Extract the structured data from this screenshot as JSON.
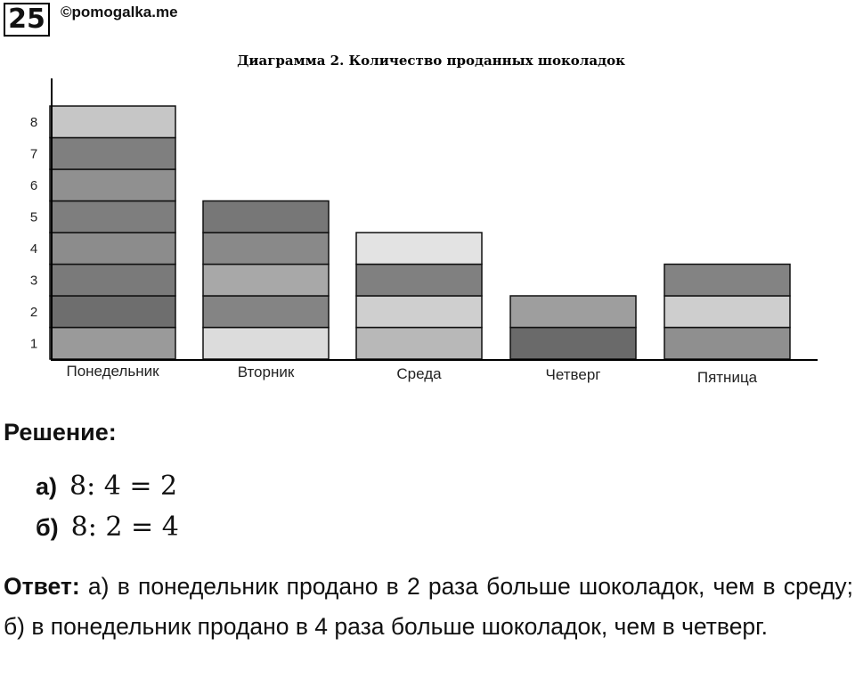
{
  "header": {
    "problem_number": "25",
    "site": "©pomogalka.me"
  },
  "chart_data": {
    "type": "bar",
    "title": "Диаграмма 2. Количество проданных шоколадок",
    "categories": [
      "Понедельник",
      "Вторник",
      "Среда",
      "Четверг",
      "Пятница"
    ],
    "values": [
      8,
      5,
      4,
      2,
      3
    ],
    "yticks": [
      "1",
      "2",
      "3",
      "4",
      "5",
      "6",
      "7",
      "8"
    ],
    "ylim": [
      0,
      8.5
    ],
    "xlabel": "",
    "ylabel": "",
    "grid": false,
    "stacked_units": true,
    "unit_colors": {
      "Понедельник": [
        "#9a9a9a",
        "#6e6e6e",
        "#7a7a7a",
        "#8c8c8c",
        "#7e7e7e",
        "#909090",
        "#7f7f7f",
        "#c6c6c6"
      ],
      "Вторник": [
        "#dcdcdc",
        "#848484",
        "#a8a8a8",
        "#898989",
        "#777777"
      ],
      "Среда": [
        "#b8b8b8",
        "#cfcfcf",
        "#808080",
        "#e3e3e3"
      ],
      "Четверг": [
        "#6a6a6a",
        "#9e9e9e"
      ],
      "Пятница": [
        "#8f8f8f",
        "#cecece",
        "#838383"
      ]
    }
  },
  "solution": {
    "heading": "Решение:",
    "a_label": "а)",
    "a_expr": "8: 4 = 2",
    "b_label": "б)",
    "b_expr": "8: 2 = 4"
  },
  "answer": {
    "label": "Ответ:",
    "text": " а) в понедельник продано в 2 раза больше шоколадок, чем в среду; б) в понедельник продано в 4 раза больше шоколадок, чем в четверг."
  }
}
